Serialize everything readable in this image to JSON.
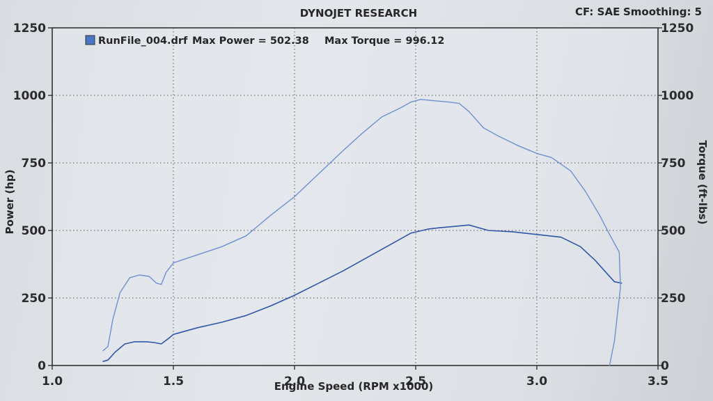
{
  "header": {
    "title": "DYNOJET RESEARCH",
    "correction": "CF: SAE",
    "smoothing": "Smoothing: 5"
  },
  "legend": {
    "run": "RunFile_004.drf",
    "max_power": "Max Power = 502.38",
    "max_torque": "Max Torque = 996.12",
    "swatch_color": "#4a77c4"
  },
  "colors": {
    "power": "#2e56a8",
    "torque": "#6f8fd2",
    "grid": "#555555",
    "frame": "#333333"
  },
  "chart_data": {
    "type": "line",
    "xlabel": "Engine Speed (RPM x1000)",
    "ylabel": "Power (hp)",
    "y2label": "Torque (ft-lbs)",
    "xlim": [
      1.0,
      3.5
    ],
    "ylim": [
      0,
      1250
    ],
    "y2lim": [
      0,
      1250
    ],
    "x_ticks": [
      "1.0",
      "1.5",
      "2.0",
      "2.5",
      "3.0",
      "3.5"
    ],
    "y_ticks": [
      "0",
      "250",
      "500",
      "750",
      "1000",
      "1250"
    ],
    "y2_ticks": [
      "0",
      "250",
      "500",
      "750",
      "1000",
      "1250"
    ],
    "grid": true,
    "legend_position": "top-left",
    "series": [
      {
        "name": "Power",
        "axis": "left",
        "points": [
          [
            1.21,
            15
          ],
          [
            1.23,
            20
          ],
          [
            1.26,
            50
          ],
          [
            1.3,
            80
          ],
          [
            1.34,
            88
          ],
          [
            1.39,
            88
          ],
          [
            1.42,
            85
          ],
          [
            1.45,
            80
          ],
          [
            1.48,
            100
          ],
          [
            1.5,
            115
          ],
          [
            1.6,
            140
          ],
          [
            1.7,
            160
          ],
          [
            1.8,
            185
          ],
          [
            1.9,
            220
          ],
          [
            2.0,
            260
          ],
          [
            2.1,
            305
          ],
          [
            2.2,
            350
          ],
          [
            2.3,
            400
          ],
          [
            2.4,
            450
          ],
          [
            2.48,
            490
          ],
          [
            2.55,
            505
          ],
          [
            2.6,
            510
          ],
          [
            2.66,
            515
          ],
          [
            2.72,
            520
          ],
          [
            2.76,
            510
          ],
          [
            2.8,
            500
          ],
          [
            2.9,
            495
          ],
          [
            3.0,
            485
          ],
          [
            3.1,
            475
          ],
          [
            3.18,
            440
          ],
          [
            3.24,
            390
          ],
          [
            3.28,
            350
          ],
          [
            3.32,
            310
          ],
          [
            3.35,
            305
          ]
        ]
      },
      {
        "name": "Torque",
        "axis": "right",
        "points": [
          [
            1.21,
            55
          ],
          [
            1.23,
            70
          ],
          [
            1.25,
            170
          ],
          [
            1.28,
            270
          ],
          [
            1.32,
            325
          ],
          [
            1.36,
            335
          ],
          [
            1.4,
            330
          ],
          [
            1.43,
            305
          ],
          [
            1.45,
            300
          ],
          [
            1.47,
            345
          ],
          [
            1.5,
            380
          ],
          [
            1.6,
            410
          ],
          [
            1.7,
            440
          ],
          [
            1.8,
            480
          ],
          [
            1.9,
            555
          ],
          [
            2.0,
            625
          ],
          [
            2.1,
            710
          ],
          [
            2.2,
            795
          ],
          [
            2.28,
            860
          ],
          [
            2.36,
            920
          ],
          [
            2.44,
            955
          ],
          [
            2.48,
            975
          ],
          [
            2.52,
            985
          ],
          [
            2.58,
            980
          ],
          [
            2.64,
            975
          ],
          [
            2.68,
            970
          ],
          [
            2.72,
            940
          ],
          [
            2.78,
            880
          ],
          [
            2.84,
            850
          ],
          [
            2.92,
            815
          ],
          [
            3.0,
            785
          ],
          [
            3.06,
            770
          ],
          [
            3.14,
            720
          ],
          [
            3.2,
            645
          ],
          [
            3.26,
            555
          ],
          [
            3.3,
            485
          ],
          [
            3.34,
            420
          ],
          [
            3.345,
            290
          ],
          [
            3.32,
            90
          ],
          [
            3.3,
            0
          ]
        ]
      }
    ]
  }
}
